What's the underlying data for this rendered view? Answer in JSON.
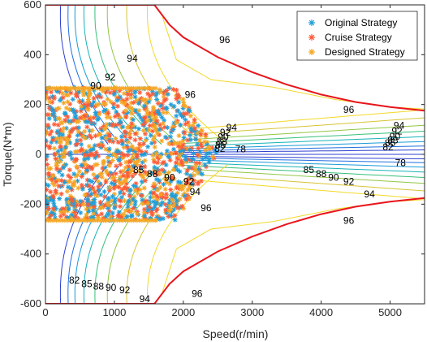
{
  "chart_data": {
    "type": "scatter",
    "xlabel": "Speed(r/min)",
    "ylabel": "Torque(N*m)",
    "xlim": [
      0,
      5500
    ],
    "ylim": [
      -600,
      600
    ],
    "x_ticks": [
      0,
      1000,
      2000,
      3000,
      4000,
      5000
    ],
    "y_ticks": [
      -600,
      -400,
      -200,
      0,
      200,
      400,
      600
    ],
    "grid": false,
    "legend_position": "top-right",
    "legend": [
      {
        "name": "Original Strategy",
        "color": "#1f9ed9",
        "marker": "asterisk"
      },
      {
        "name": "Cruise Strategy",
        "color": "#ff5a36",
        "marker": "asterisk"
      },
      {
        "name": "Designed Strategy",
        "color": "#f5a623",
        "marker": "asterisk"
      }
    ],
    "torque_limit": {
      "color": "#e8141c",
      "x": [
        0,
        1580,
        1800,
        2000,
        2500,
        3000,
        3500,
        4000,
        4500,
        5000,
        5500
      ],
      "y": [
        600,
        600,
        520,
        470,
        390,
        330,
        280,
        240,
        210,
        190,
        175
      ]
    },
    "contour_labels": [
      {
        "text": "96",
        "x": 2600,
        "y": 460
      },
      {
        "text": "96",
        "x": 4400,
        "y": 180
      },
      {
        "text": "94",
        "x": 1260,
        "y": 385
      },
      {
        "text": "92",
        "x": 940,
        "y": 310
      },
      {
        "text": "90",
        "x": 730,
        "y": 275
      },
      {
        "text": "96",
        "x": 2100,
        "y": 240
      },
      {
        "text": "94",
        "x": 2700,
        "y": 108
      },
      {
        "text": "92",
        "x": 2610,
        "y": 88
      },
      {
        "text": "90",
        "x": 2580,
        "y": 70
      },
      {
        "text": "88",
        "x": 2560,
        "y": 52
      },
      {
        "text": "85",
        "x": 2540,
        "y": 37
      },
      {
        "text": "82",
        "x": 2530,
        "y": 23
      },
      {
        "text": "94",
        "x": 5130,
        "y": 115
      },
      {
        "text": "92",
        "x": 5100,
        "y": 93
      },
      {
        "text": "90",
        "x": 5070,
        "y": 72
      },
      {
        "text": "88",
        "x": 5040,
        "y": 57
      },
      {
        "text": "85",
        "x": 5000,
        "y": 45
      },
      {
        "text": "82",
        "x": 4970,
        "y": 30
      },
      {
        "text": "78",
        "x": 2830,
        "y": 22
      },
      {
        "text": "78",
        "x": 5150,
        "y": -35
      },
      {
        "text": "85",
        "x": 1350,
        "y": -62
      },
      {
        "text": "88",
        "x": 1550,
        "y": -78
      },
      {
        "text": "90",
        "x": 1800,
        "y": -93
      },
      {
        "text": "92",
        "x": 2080,
        "y": -110
      },
      {
        "text": "94",
        "x": 2170,
        "y": -150
      },
      {
        "text": "96",
        "x": 2330,
        "y": -215
      },
      {
        "text": "85",
        "x": 3820,
        "y": -62
      },
      {
        "text": "88",
        "x": 4000,
        "y": -78
      },
      {
        "text": "90",
        "x": 4180,
        "y": -93
      },
      {
        "text": "92",
        "x": 4400,
        "y": -110
      },
      {
        "text": "94",
        "x": 4700,
        "y": -160
      },
      {
        "text": "96",
        "x": 4400,
        "y": -265
      },
      {
        "text": "82",
        "x": 420,
        "y": -505
      },
      {
        "text": "85",
        "x": 600,
        "y": -520
      },
      {
        "text": "88",
        "x": 770,
        "y": -530
      },
      {
        "text": "90",
        "x": 950,
        "y": -535
      },
      {
        "text": "92",
        "x": 1150,
        "y": -545
      },
      {
        "text": "94",
        "x": 1440,
        "y": -580
      },
      {
        "text": "96",
        "x": 2200,
        "y": -560
      }
    ]
  }
}
